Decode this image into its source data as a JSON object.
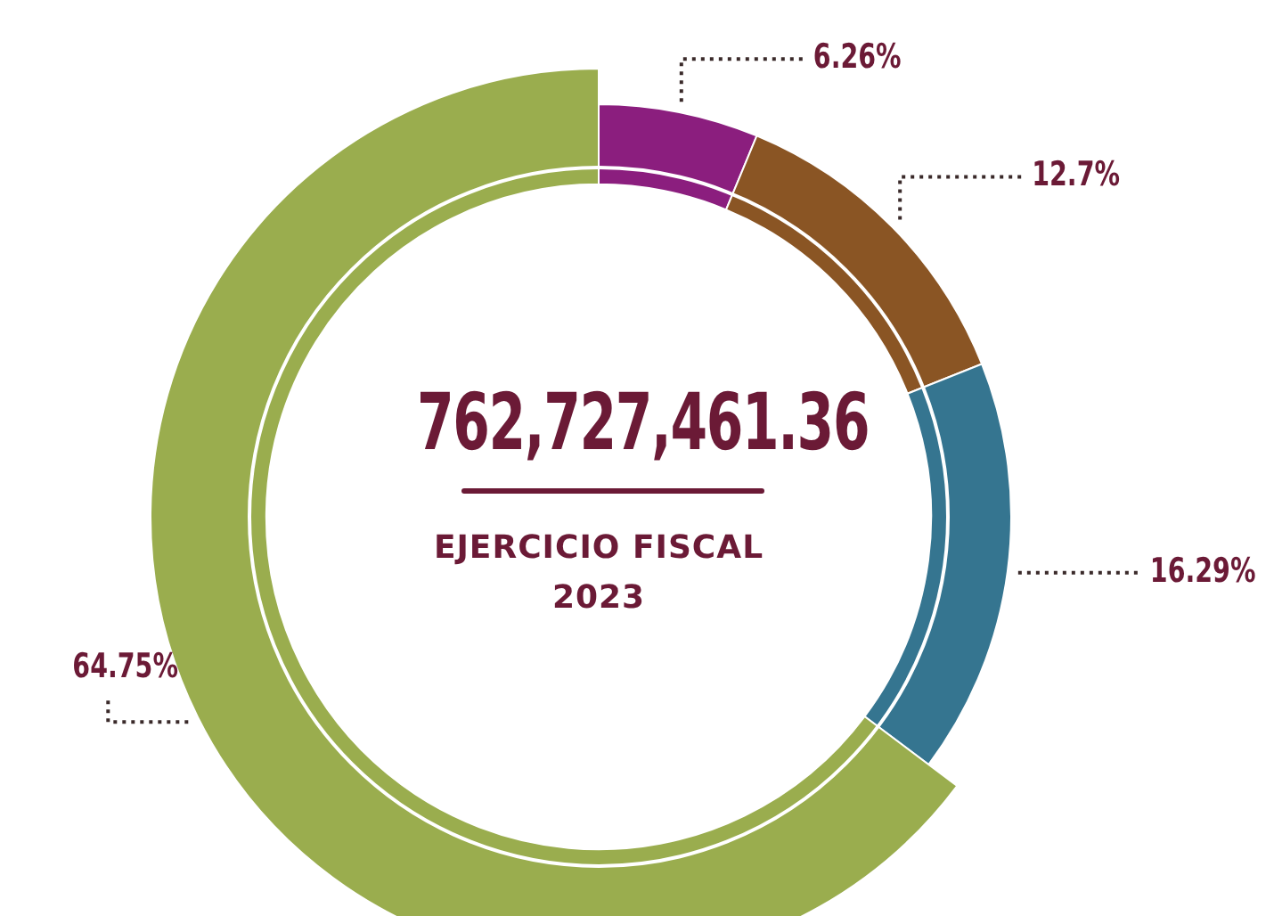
{
  "chart_data": {
    "type": "donut",
    "title": "762,727,461.36",
    "subtitle": "EJERCICIO FISCAL 2023",
    "categories": [
      null,
      null,
      null,
      null
    ],
    "values": [
      6.26,
      12.7,
      16.29,
      64.75
    ],
    "colors": [
      "#8b1e7e",
      "#8a5524",
      "#357590",
      "#9aad4e"
    ],
    "value_labels": [
      "6.26%",
      "12.7%",
      "16.29%",
      "64.75%"
    ],
    "legend": false
  }
}
